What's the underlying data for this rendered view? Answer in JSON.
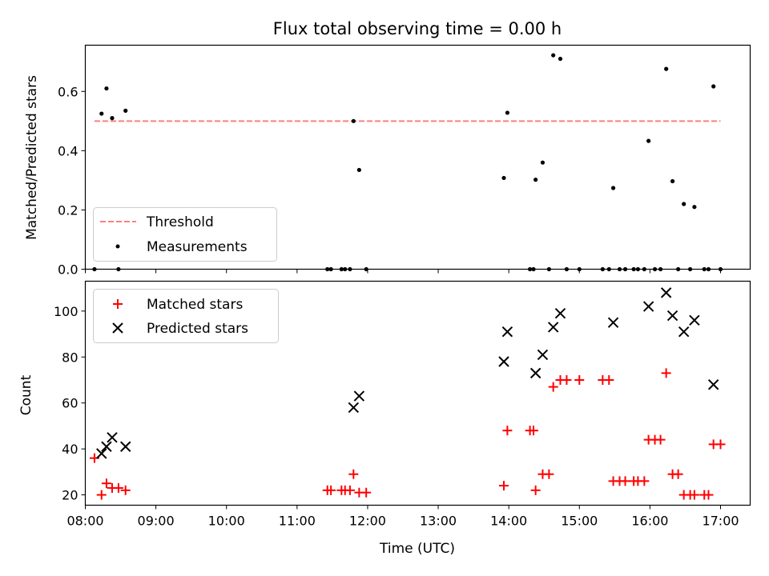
{
  "chart_data": [
    {
      "type": "scatter",
      "title": "Flux total observing time = 0.00 h",
      "xlabel": "",
      "ylabel": "Matched/Predicted stars",
      "xlim": [
        8.0,
        17.42
      ],
      "ylim": [
        0.0,
        0.756
      ],
      "x_ticks": [
        "08:00",
        "09:00",
        "10:00",
        "11:00",
        "12:00",
        "13:00",
        "14:00",
        "15:00",
        "16:00",
        "17:00"
      ],
      "y_ticks": [
        "0.0",
        "0.2",
        "0.4",
        "0.6"
      ],
      "legend_position": "lower-left",
      "legend": [
        "Threshold",
        "Measurements"
      ],
      "threshold": {
        "name": "Threshold",
        "y": 0.5,
        "x": [
          8.13,
          17.0
        ],
        "color": "#ff7f7f",
        "style": "dashed"
      },
      "series": [
        {
          "name": "Measurements",
          "color": "#000000",
          "marker": "dot",
          "points": [
            {
              "x": 8.13,
              "y": 0.0
            },
            {
              "x": 8.23,
              "y": 0.525
            },
            {
              "x": 8.3,
              "y": 0.61
            },
            {
              "x": 8.38,
              "y": 0.51
            },
            {
              "x": 8.47,
              "y": 0.0
            },
            {
              "x": 8.57,
              "y": 0.535
            },
            {
              "x": 11.43,
              "y": 0.0
            },
            {
              "x": 11.48,
              "y": 0.0
            },
            {
              "x": 11.63,
              "y": 0.0
            },
            {
              "x": 11.68,
              "y": 0.0
            },
            {
              "x": 11.75,
              "y": 0.0
            },
            {
              "x": 11.8,
              "y": 0.5
            },
            {
              "x": 11.88,
              "y": 0.335
            },
            {
              "x": 11.98,
              "y": 0.0
            },
            {
              "x": 13.93,
              "y": 0.308
            },
            {
              "x": 13.98,
              "y": 0.528
            },
            {
              "x": 14.3,
              "y": 0.0
            },
            {
              "x": 14.35,
              "y": 0.0
            },
            {
              "x": 14.38,
              "y": 0.302
            },
            {
              "x": 14.48,
              "y": 0.36
            },
            {
              "x": 14.57,
              "y": 0.0
            },
            {
              "x": 14.63,
              "y": 0.722
            },
            {
              "x": 14.73,
              "y": 0.71
            },
            {
              "x": 14.82,
              "y": 0.0
            },
            {
              "x": 15.0,
              "y": 0.0
            },
            {
              "x": 15.33,
              "y": 0.0
            },
            {
              "x": 15.42,
              "y": 0.0
            },
            {
              "x": 15.48,
              "y": 0.274
            },
            {
              "x": 15.57,
              "y": 0.0
            },
            {
              "x": 15.65,
              "y": 0.0
            },
            {
              "x": 15.77,
              "y": 0.0
            },
            {
              "x": 15.83,
              "y": 0.0
            },
            {
              "x": 15.92,
              "y": 0.0
            },
            {
              "x": 15.98,
              "y": 0.433
            },
            {
              "x": 16.07,
              "y": 0.0
            },
            {
              "x": 16.15,
              "y": 0.0
            },
            {
              "x": 16.23,
              "y": 0.676
            },
            {
              "x": 16.32,
              "y": 0.297
            },
            {
              "x": 16.4,
              "y": 0.0
            },
            {
              "x": 16.48,
              "y": 0.22
            },
            {
              "x": 16.57,
              "y": 0.0
            },
            {
              "x": 16.63,
              "y": 0.21
            },
            {
              "x": 16.77,
              "y": 0.0
            },
            {
              "x": 16.83,
              "y": 0.0
            },
            {
              "x": 16.9,
              "y": 0.617
            },
            {
              "x": 17.0,
              "y": 0.0
            }
          ]
        }
      ]
    },
    {
      "type": "scatter",
      "title": "",
      "xlabel": "Time (UTC)",
      "ylabel": "Count",
      "xlim": [
        8.0,
        17.42
      ],
      "ylim": [
        15.5,
        113.0
      ],
      "x_ticks": [
        "08:00",
        "09:00",
        "10:00",
        "11:00",
        "12:00",
        "13:00",
        "14:00",
        "15:00",
        "16:00",
        "17:00"
      ],
      "y_ticks": [
        "20",
        "40",
        "60",
        "80",
        "100"
      ],
      "legend_position": "upper-left",
      "legend": [
        "Matched stars",
        "Predicted stars"
      ],
      "series": [
        {
          "name": "Matched stars",
          "color": "#ff0000",
          "marker": "plus",
          "points": [
            {
              "x": 8.13,
              "y": 36
            },
            {
              "x": 8.23,
              "y": 20
            },
            {
              "x": 8.3,
              "y": 25
            },
            {
              "x": 8.38,
              "y": 23
            },
            {
              "x": 8.47,
              "y": 23
            },
            {
              "x": 8.57,
              "y": 22
            },
            {
              "x": 11.43,
              "y": 22
            },
            {
              "x": 11.48,
              "y": 22
            },
            {
              "x": 11.63,
              "y": 22
            },
            {
              "x": 11.68,
              "y": 22
            },
            {
              "x": 11.75,
              "y": 22
            },
            {
              "x": 11.8,
              "y": 29
            },
            {
              "x": 11.88,
              "y": 21
            },
            {
              "x": 11.98,
              "y": 21
            },
            {
              "x": 13.93,
              "y": 24
            },
            {
              "x": 13.98,
              "y": 48
            },
            {
              "x": 14.3,
              "y": 48
            },
            {
              "x": 14.35,
              "y": 48
            },
            {
              "x": 14.38,
              "y": 22
            },
            {
              "x": 14.48,
              "y": 29
            },
            {
              "x": 14.57,
              "y": 29
            },
            {
              "x": 14.63,
              "y": 67
            },
            {
              "x": 14.73,
              "y": 70
            },
            {
              "x": 14.82,
              "y": 70
            },
            {
              "x": 15.0,
              "y": 70
            },
            {
              "x": 15.33,
              "y": 70
            },
            {
              "x": 15.42,
              "y": 70
            },
            {
              "x": 15.48,
              "y": 26
            },
            {
              "x": 15.57,
              "y": 26
            },
            {
              "x": 15.65,
              "y": 26
            },
            {
              "x": 15.77,
              "y": 26
            },
            {
              "x": 15.83,
              "y": 26
            },
            {
              "x": 15.92,
              "y": 26
            },
            {
              "x": 15.98,
              "y": 44
            },
            {
              "x": 16.07,
              "y": 44
            },
            {
              "x": 16.15,
              "y": 44
            },
            {
              "x": 16.23,
              "y": 73
            },
            {
              "x": 16.32,
              "y": 29
            },
            {
              "x": 16.4,
              "y": 29
            },
            {
              "x": 16.48,
              "y": 20
            },
            {
              "x": 16.57,
              "y": 20
            },
            {
              "x": 16.63,
              "y": 20
            },
            {
              "x": 16.77,
              "y": 20
            },
            {
              "x": 16.83,
              "y": 20
            },
            {
              "x": 16.9,
              "y": 42
            },
            {
              "x": 17.0,
              "y": 42
            }
          ]
        },
        {
          "name": "Predicted stars",
          "color": "#000000",
          "marker": "x",
          "points": [
            {
              "x": 8.23,
              "y": 38
            },
            {
              "x": 8.3,
              "y": 41
            },
            {
              "x": 8.38,
              "y": 45
            },
            {
              "x": 8.57,
              "y": 41
            },
            {
              "x": 11.8,
              "y": 58
            },
            {
              "x": 11.88,
              "y": 63
            },
            {
              "x": 13.93,
              "y": 78
            },
            {
              "x": 13.98,
              "y": 91
            },
            {
              "x": 14.38,
              "y": 73
            },
            {
              "x": 14.48,
              "y": 81
            },
            {
              "x": 14.63,
              "y": 93
            },
            {
              "x": 14.73,
              "y": 99
            },
            {
              "x": 15.48,
              "y": 95
            },
            {
              "x": 15.98,
              "y": 102
            },
            {
              "x": 16.23,
              "y": 108
            },
            {
              "x": 16.32,
              "y": 98
            },
            {
              "x": 16.48,
              "y": 91
            },
            {
              "x": 16.63,
              "y": 96
            },
            {
              "x": 16.9,
              "y": 68
            }
          ]
        }
      ]
    }
  ]
}
